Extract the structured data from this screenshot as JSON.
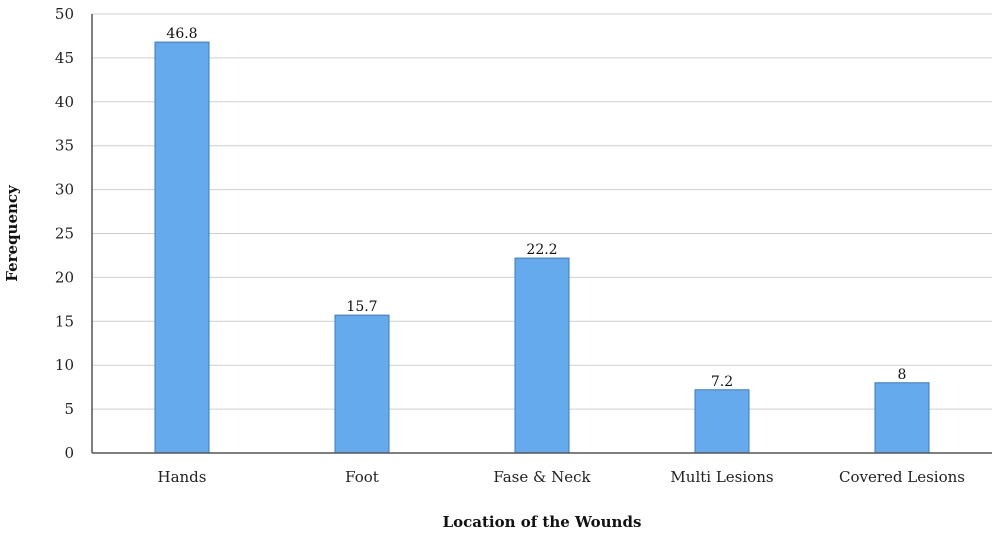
{
  "chart_data": {
    "type": "bar",
    "categories": [
      "Hands",
      "Foot",
      "Fase & Neck",
      "Multi Lesions",
      "Covered Lesions"
    ],
    "series": [
      {
        "values": [
          46.8,
          15.7,
          22.2,
          7.2,
          8
        ]
      }
    ],
    "data_labels": [
      "46.8",
      "15.7",
      "22.2",
      "7.2",
      "8"
    ],
    "xlabel": "Location of the Wounds",
    "ylabel": "Ferequency",
    "ylim": [
      0,
      50
    ],
    "yticks": [
      0,
      5,
      10,
      15,
      20,
      25,
      30,
      35,
      40,
      45,
      50
    ],
    "grid": true,
    "legend": "none",
    "colors": {
      "bar_fill": "#66aaee",
      "bar_stroke": "#3a78c2",
      "grid": "#cfcfcf"
    }
  }
}
